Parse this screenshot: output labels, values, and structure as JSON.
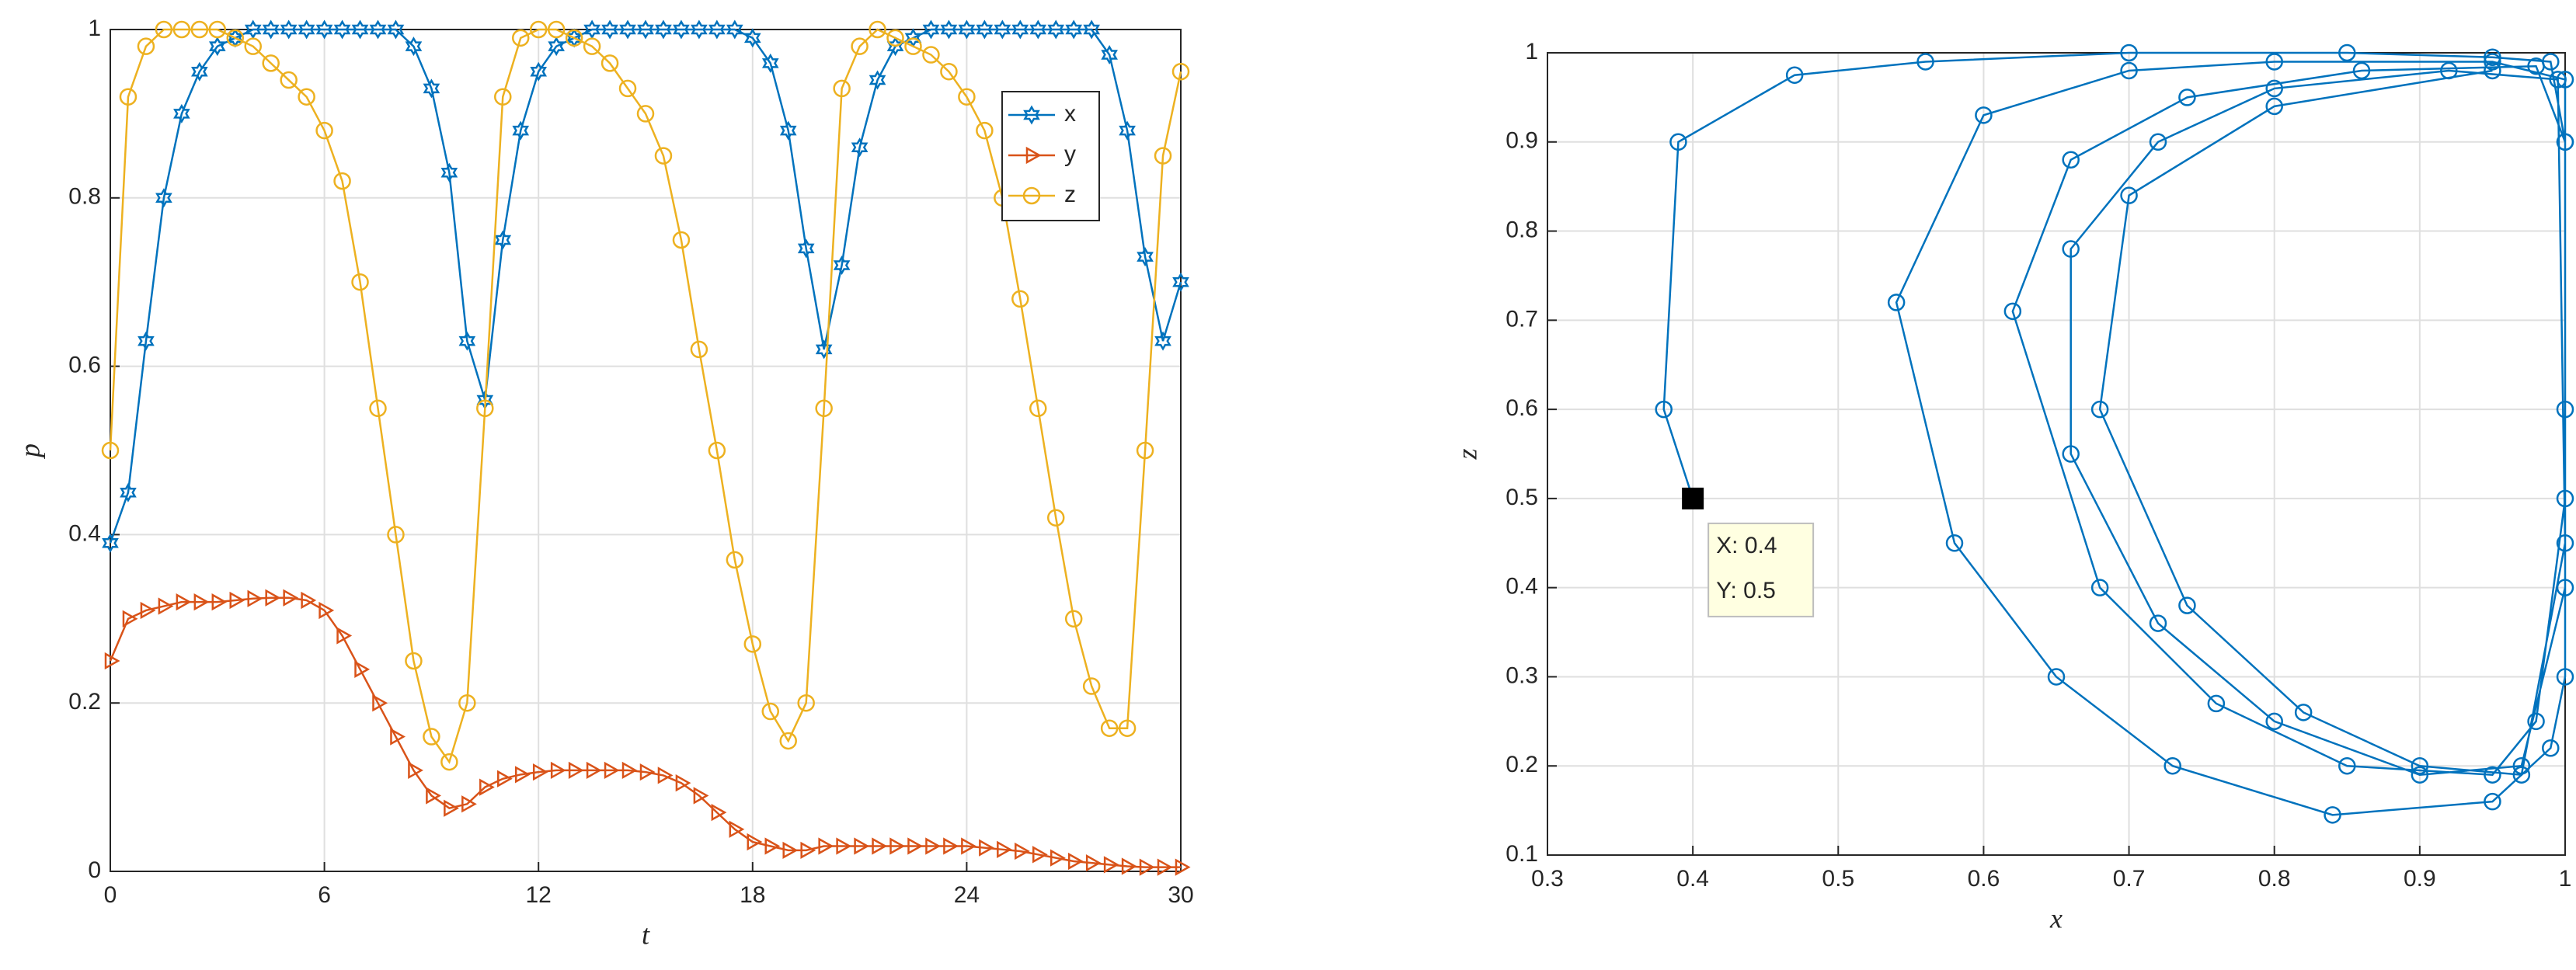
{
  "chart_data": [
    {
      "type": "line",
      "xlabel": "t",
      "ylabel": "p",
      "grid": true,
      "legend": "upper right",
      "xlim": [
        0,
        30
      ],
      "ylim": [
        0,
        1
      ],
      "xticks": [
        0,
        6,
        12,
        18,
        24,
        30
      ],
      "yticks": [
        0,
        0.2,
        0.4,
        0.6,
        0.8,
        1
      ],
      "x": [
        0,
        0.5,
        1,
        1.5,
        2,
        2.5,
        3,
        3.5,
        4,
        4.5,
        5,
        5.5,
        6,
        6.5,
        7,
        7.5,
        8,
        8.5,
        9,
        9.5,
        10,
        10.5,
        11,
        11.5,
        12,
        12.5,
        13,
        13.5,
        14,
        14.5,
        15,
        15.5,
        16,
        16.5,
        17,
        17.5,
        18,
        18.5,
        19,
        19.5,
        20,
        20.5,
        21,
        21.5,
        22,
        22.5,
        23,
        23.5,
        24,
        24.5,
        25,
        25.5,
        26,
        26.5,
        27,
        27.5,
        28,
        28.5,
        29,
        29.5,
        30
      ],
      "series": [
        {
          "name": "x",
          "color": "#0072bd",
          "marker": "hexagram",
          "values": [
            0.39,
            0.45,
            0.63,
            0.8,
            0.9,
            0.95,
            0.98,
            0.99,
            1,
            1,
            1,
            1,
            1,
            1,
            1,
            1,
            1,
            0.98,
            0.93,
            0.83,
            0.63,
            0.56,
            0.75,
            0.88,
            0.95,
            0.98,
            0.99,
            1,
            1,
            1,
            1,
            1,
            1,
            1,
            1,
            1,
            0.99,
            0.96,
            0.88,
            0.74,
            0.62,
            0.72,
            0.86,
            0.94,
            0.98,
            0.99,
            1,
            1,
            1,
            1,
            1,
            1,
            1,
            1,
            1,
            1,
            0.97,
            0.88,
            0.73,
            0.63,
            0.7
          ]
        },
        {
          "name": "y",
          "color": "#d95319",
          "marker": "triangle-right",
          "values": [
            0.25,
            0.3,
            0.31,
            0.315,
            0.32,
            0.32,
            0.32,
            0.322,
            0.324,
            0.325,
            0.325,
            0.322,
            0.31,
            0.28,
            0.24,
            0.2,
            0.16,
            0.12,
            0.09,
            0.075,
            0.08,
            0.1,
            0.11,
            0.115,
            0.118,
            0.12,
            0.12,
            0.12,
            0.12,
            0.12,
            0.118,
            0.114,
            0.105,
            0.09,
            0.07,
            0.05,
            0.035,
            0.03,
            0.025,
            0.025,
            0.03,
            0.03,
            0.03,
            0.03,
            0.03,
            0.03,
            0.03,
            0.03,
            0.03,
            0.028,
            0.026,
            0.024,
            0.02,
            0.016,
            0.012,
            0.01,
            0.008,
            0.006,
            0.005,
            0.005,
            0.005
          ]
        },
        {
          "name": "z",
          "color": "#edb120",
          "marker": "circle",
          "values": [
            0.5,
            0.92,
            0.98,
            1,
            1,
            1,
            1,
            0.99,
            0.98,
            0.96,
            0.94,
            0.92,
            0.88,
            0.82,
            0.7,
            0.55,
            0.4,
            0.25,
            0.16,
            0.13,
            0.2,
            0.55,
            0.92,
            0.99,
            1,
            1,
            0.99,
            0.98,
            0.96,
            0.93,
            0.9,
            0.85,
            0.75,
            0.62,
            0.5,
            0.37,
            0.27,
            0.19,
            0.155,
            0.2,
            0.55,
            0.93,
            0.98,
            1,
            0.99,
            0.98,
            0.97,
            0.95,
            0.92,
            0.88,
            0.8,
            0.68,
            0.55,
            0.42,
            0.3,
            0.22,
            0.17,
            0.17,
            0.5,
            0.85,
            0.95
          ]
        }
      ]
    },
    {
      "type": "line",
      "xlabel": "x",
      "ylabel": "z",
      "grid": true,
      "xlim": [
        0.3,
        1
      ],
      "ylim": [
        0.1,
        1
      ],
      "xticks": [
        0.3,
        0.4,
        0.5,
        0.6,
        0.7,
        0.8,
        0.9,
        1
      ],
      "yticks": [
        0.1,
        0.2,
        0.3,
        0.4,
        0.5,
        0.6,
        0.7,
        0.8,
        0.9,
        1
      ],
      "x": [
        0.4,
        0.38,
        0.39,
        0.47,
        0.56,
        0.7,
        0.85,
        0.95,
        0.99,
        1,
        1,
        1,
        0.99,
        0.95,
        0.84,
        0.73,
        0.65,
        0.58,
        0.54,
        0.6,
        0.7,
        0.8,
        0.95,
        1,
        1,
        0.98,
        0.95,
        0.85,
        0.76,
        0.68,
        0.62,
        0.66,
        0.74,
        0.86,
        0.98,
        1,
        1,
        0.97,
        0.9,
        0.8,
        0.72,
        0.66,
        0.66,
        0.72,
        0.8,
        0.92,
        0.995,
        1,
        0.97,
        0.9,
        0.82,
        0.74,
        0.68,
        0.7,
        0.8,
        0.95
      ],
      "series": [
        {
          "color": "#0072bd",
          "marker": "circle",
          "values": [
            0.5,
            0.6,
            0.9,
            0.975,
            0.99,
            1,
            1,
            0.995,
            0.99,
            0.9,
            0.6,
            0.3,
            0.22,
            0.16,
            0.145,
            0.2,
            0.3,
            0.45,
            0.72,
            0.93,
            0.98,
            0.99,
            0.99,
            0.97,
            0.5,
            0.25,
            0.19,
            0.2,
            0.27,
            0.4,
            0.71,
            0.88,
            0.95,
            0.98,
            0.985,
            0.9,
            0.4,
            0.2,
            0.19,
            0.25,
            0.36,
            0.55,
            0.78,
            0.9,
            0.96,
            0.98,
            0.97,
            0.45,
            0.19,
            0.2,
            0.26,
            0.38,
            0.6,
            0.84,
            0.94,
            0.98
          ]
        }
      ],
      "datatip": {
        "x": 0.4,
        "y": 0.5,
        "lines": [
          "X: 0.4",
          "Y: 0.5"
        ]
      }
    }
  ]
}
